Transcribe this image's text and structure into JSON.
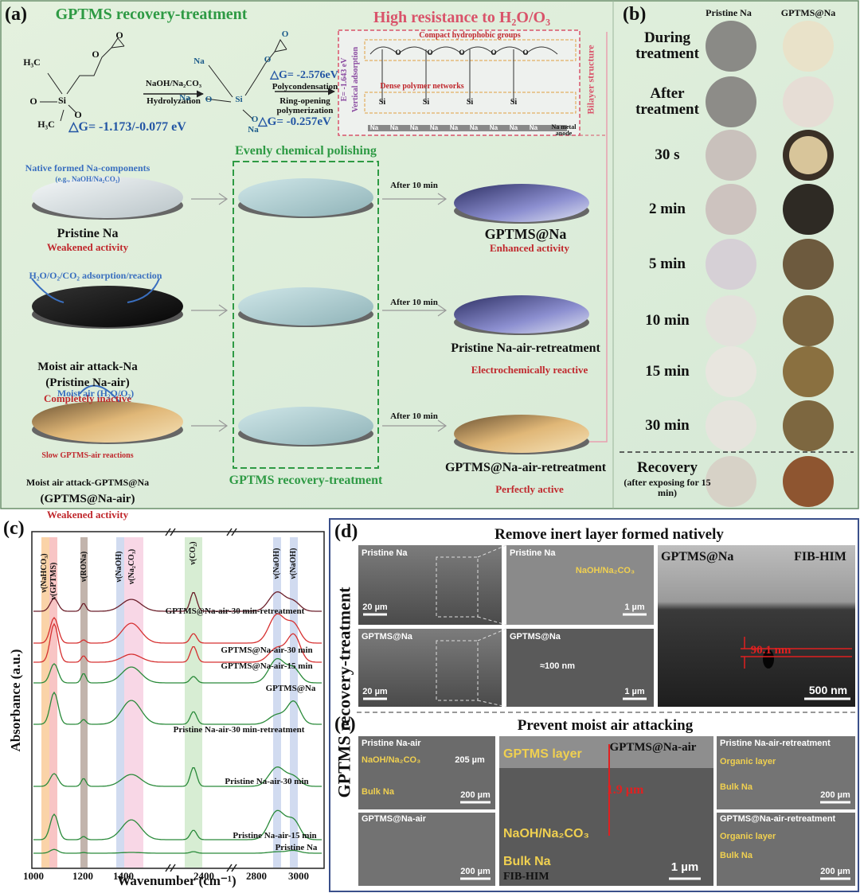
{
  "panel_a": {
    "label": "(a)",
    "title": "GPTMS recovery-treatment",
    "resistance_title": "High resistance to H₂O/O₃",
    "reaction": {
      "reagent": "NaOH/Na₂CO₃",
      "step1": "Hydrolyzation",
      "dg1": "△G= -1.173/-0.077 eV",
      "dg2": "△G= -2.576eV",
      "step2": "Polycondensation",
      "step3": "Ring-opening polymerization",
      "dg3": "△G= -0.257eV"
    },
    "molecule1": [
      "O",
      "O",
      "H₃C",
      "Si",
      "O",
      "O",
      "H₃C"
    ],
    "molecule2": [
      "O",
      "O",
      "Na",
      "Si",
      "Na",
      "O",
      "O",
      "Na"
    ],
    "bilayer": {
      "top": "Compact hydrophobic groups",
      "bottom": "Dense polymer networks",
      "energy": "E= -1.643 eV",
      "adsorption": "Vertical adsorption",
      "structure": "Bilayer structure",
      "anode": "Na metal anode",
      "chain_o": [
        "O",
        "O",
        "O",
        "O",
        "O"
      ],
      "si": [
        "Si",
        "Si",
        "Si",
        "Si"
      ],
      "na": [
        "Na",
        "Na",
        "Na",
        "Na",
        "Na",
        "Na",
        "Na",
        "Na",
        "Na"
      ]
    },
    "polishing": "Evenly chemical polishing",
    "treatment": "GPTMS recovery-treatment",
    "rows": [
      {
        "note": "Native formed Na-components",
        "subnote": "(e.g., NaOH/Na₂CO₃)",
        "name": "Pristine Na",
        "status": "Weakened activity",
        "arrow": "After 10 min",
        "result": "GPTMS@Na",
        "result_status": "Enhanced activity"
      },
      {
        "note": "H₂O/O₂/CO₂ adsorption/reaction",
        "name": "Moist air attack-Na",
        "name2": "(Pristine Na-air)",
        "status": "Completely inactive",
        "arrow": "After 10 min",
        "result": "Pristine Na-air-retreatment",
        "result_status": "Electrochemically reactive"
      },
      {
        "note": "Moist air (H₂O/O₂)",
        "subnote": "Slow GPTMS-air reactions",
        "name": "Moist air attack-GPTMS@Na",
        "name2": "(GPTMS@Na-air)",
        "status": "Weakened activity",
        "arrow": "After 10 min",
        "result": "GPTMS@Na-air-retreatment",
        "result_status": "Perfectly active"
      }
    ]
  },
  "panel_b": {
    "label": "(b)",
    "columns": [
      "Pristine Na",
      "GPTMS@Na"
    ],
    "rows": [
      "During treatment",
      "After treatment",
      "30 s",
      "2 min",
      "5 min",
      "10 min",
      "15 min",
      "30 min"
    ],
    "recovery": "Recovery",
    "recovery_note": "(after exposing for 15 min)"
  },
  "panel_c": {
    "label": "(c)",
    "y_label": "Absorbance (a.u.)",
    "x_label": "Wavenumber (cm⁻¹)",
    "xticks": [
      1000,
      1200,
      1400,
      2400,
      2800,
      3000
    ],
    "bands": [
      "ν(NaHCO₃)",
      "ν(GPTMS)",
      "ν(RONa)",
      "ν(NaOH)",
      "ν(Na₂CO₃)",
      "ν(CO₂)",
      "ν(NaOH)",
      "ν(NaOH)"
    ],
    "curves": [
      "GPTMS@Na-air-30 min-retreatment",
      "GPTMS@Na-air-30 min",
      "GPTMS@Na-air-15 min",
      "GPTMS@Na",
      "Pristine Na-air-30 min-retreatment",
      "Pristine Na-air-30 min",
      "Pristine Na-air-15 min",
      "Pristine Na"
    ]
  },
  "panel_d": {
    "label": "(d)",
    "title": "Remove inert layer formed natively",
    "side_title": "GPTMS recovery-treatment",
    "images": [
      {
        "name": "Pristine Na",
        "scale": "20 µm"
      },
      {
        "name": "Pristine Na",
        "layer": "NaOH/Na₂CO₃",
        "scale": "1 µm"
      },
      {
        "name": "GPTMS@Na",
        "scale": "20 µm"
      },
      {
        "name": "GPTMS@Na",
        "thickness": "≈100 nm",
        "scale": "1 µm"
      },
      {
        "name": "GPTMS@Na",
        "method": "FIB-HIM",
        "thickness": "90.1 nm",
        "scale": "500 nm"
      }
    ]
  },
  "panel_e": {
    "label": "(e)",
    "title": "Prevent moist air attacking",
    "images": [
      {
        "name": "Pristine Na-air",
        "layer": "NaOH/Na₂CO₃",
        "thickness": "205 µm",
        "bulk": "Bulk Na",
        "scale": "200 µm"
      },
      {
        "name": "GPTMS@Na-air",
        "scale": "200 µm"
      },
      {
        "name": "GPTMS@Na-air",
        "top_layer": "GPTMS layer",
        "thickness": "1.9 µm",
        "layer": "NaOH/Na₂CO₃",
        "bulk": "Bulk Na",
        "scale": "1 µm",
        "method": "FIB-HIM"
      },
      {
        "name": "Pristine Na-air-retreatment",
        "layer": "Organic layer",
        "bulk": "Bulk Na",
        "scale": "200 µm"
      },
      {
        "name": "GPTMS@Na-air-retreatment",
        "layer": "Organic layer",
        "bulk": "Bulk Na",
        "scale": "200 µm"
      }
    ]
  }
}
